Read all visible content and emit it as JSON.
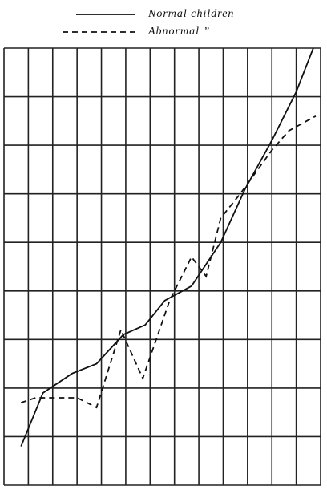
{
  "chart_data": {
    "type": "line",
    "series": [
      {
        "name": "Normal children",
        "color": "#111111",
        "dash": "solid",
        "x": [
          0.7,
          1.6,
          2.8,
          3.8,
          4.9,
          5.8,
          6.6,
          7.7,
          8.9,
          9.9,
          11.0,
          12.0,
          12.7
        ],
        "values": [
          0.8,
          1.9,
          2.3,
          2.5,
          3.1,
          3.3,
          3.8,
          4.1,
          5.0,
          6.1,
          7.1,
          8.1,
          9.0
        ]
      },
      {
        "name": "Abnormal ”",
        "color": "#111111",
        "dash": "dashed",
        "x": [
          0.7,
          1.3,
          3.0,
          3.8,
          4.8,
          5.7,
          6.8,
          7.7,
          8.3,
          8.9,
          9.7,
          11.0,
          11.7,
          12.8
        ],
        "values": [
          1.7,
          1.8,
          1.8,
          1.6,
          3.2,
          2.2,
          3.8,
          4.7,
          4.3,
          5.5,
          6.0,
          6.9,
          7.3,
          7.6
        ]
      }
    ],
    "xlim": [
      0,
      13
    ],
    "xticks": [
      0,
      1,
      2,
      3,
      4,
      5,
      6,
      7,
      8,
      9,
      10,
      11,
      12,
      13
    ],
    "ylim": [
      0,
      9
    ],
    "yticks": [
      0,
      1,
      2,
      3,
      4,
      5,
      6,
      7,
      8,
      9
    ],
    "grid": true
  }
}
